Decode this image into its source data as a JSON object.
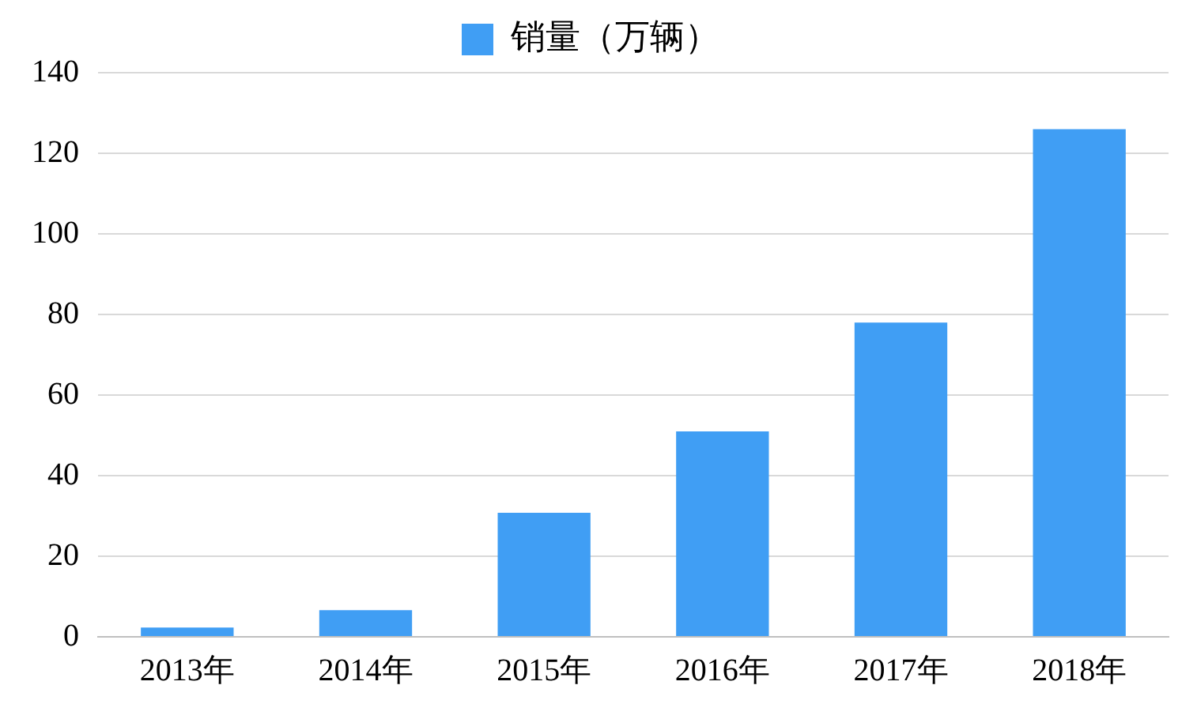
{
  "chart_data": {
    "type": "bar",
    "categories": [
      "2013年",
      "2014年",
      "2015年",
      "2016年",
      "2017年",
      "2018年"
    ],
    "series": [
      {
        "name": "销量（万辆）",
        "color": "#409ef4",
        "values": [
          2.3,
          6.6,
          30.8,
          51,
          78,
          126
        ]
      }
    ],
    "ylim": [
      0,
      140
    ],
    "yticks": [
      0,
      20,
      40,
      60,
      80,
      100,
      120,
      140
    ],
    "grid": "y",
    "legend": "top"
  }
}
